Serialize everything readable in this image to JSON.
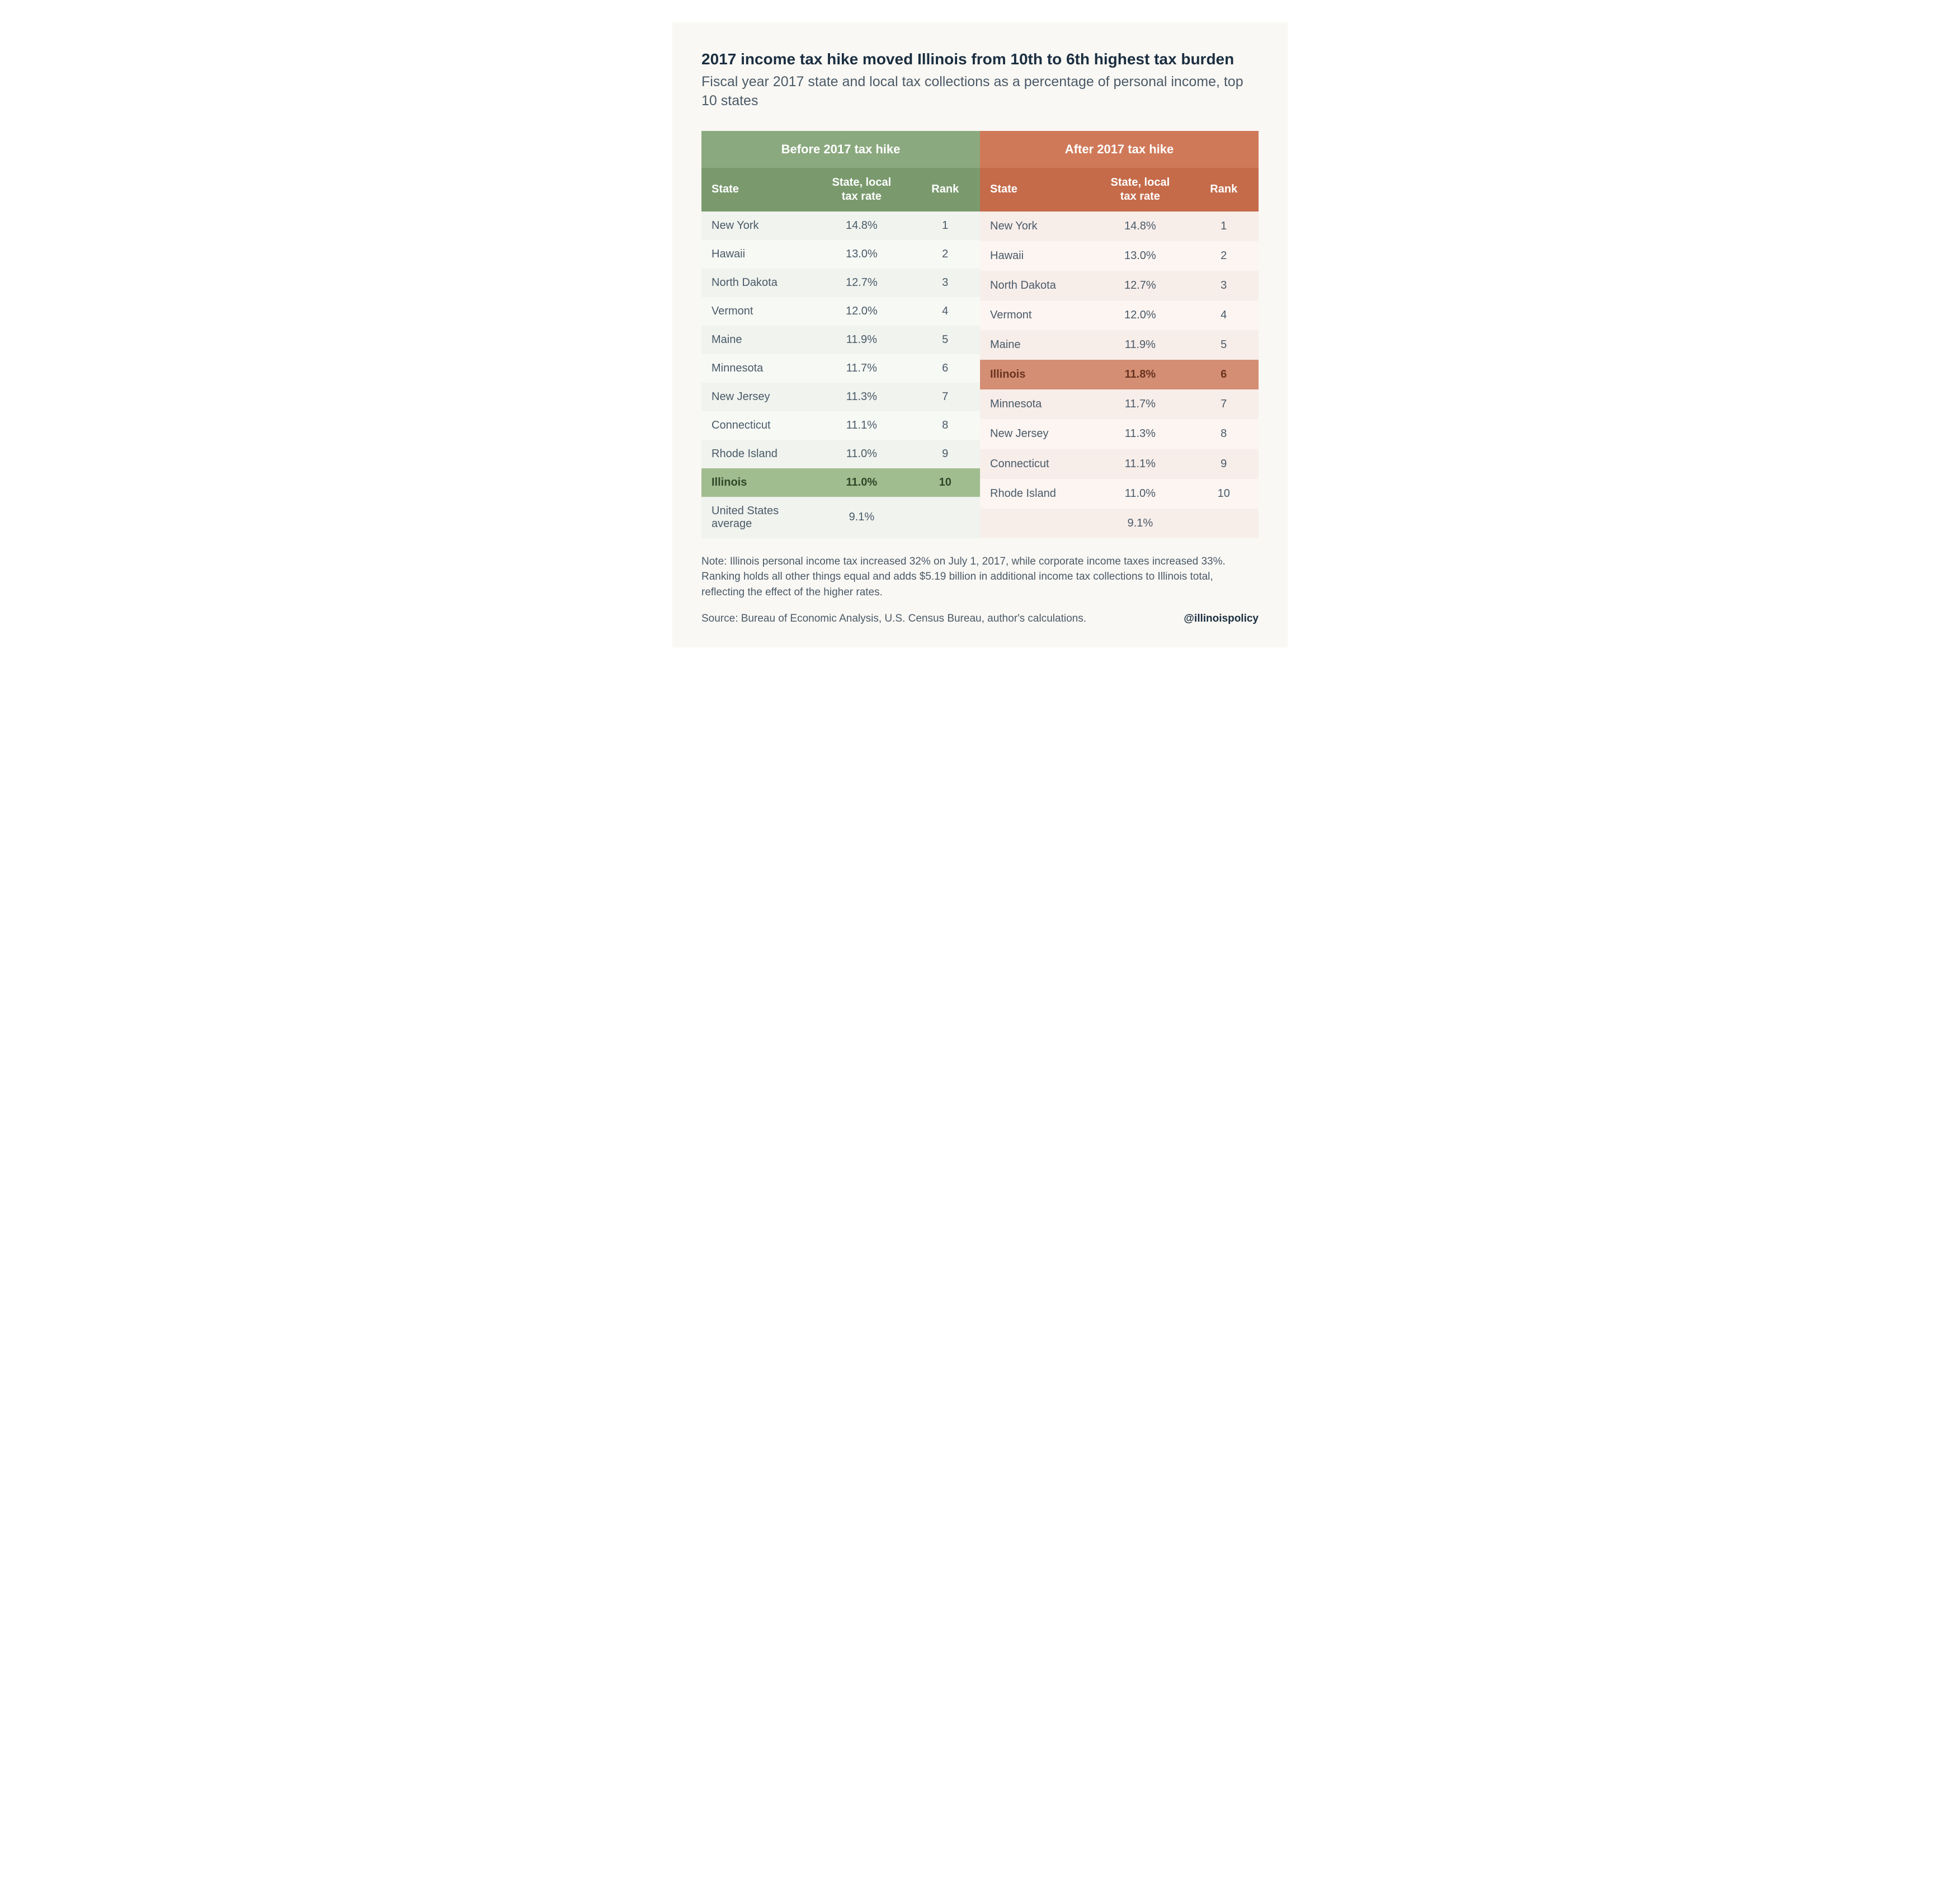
{
  "title": "2017 income tax hike moved Illinois from 10th to 6th highest tax burden",
  "subtitle": "Fiscal year 2017 state and local tax collections as a percentage of personal income, top 10 states",
  "colors": {
    "before_header": "#8ba97f",
    "before_subheader": "#7a9a6e",
    "before_highlight": "#a0bd90",
    "before_row_a": "#f0f3ee",
    "before_row_b": "#f7f9f5",
    "after_header": "#d07958",
    "after_subheader": "#c56b4a",
    "after_highlight": "#d38e74",
    "after_row_a": "#f7ede9",
    "after_row_b": "#fcf5f2",
    "background": "#faf8f4",
    "title_color": "#1a2e40",
    "body_color": "#4a5a68"
  },
  "typography": {
    "title_fontsize_pt": 21,
    "subtitle_fontsize_pt": 19,
    "header_fontsize_pt": 16,
    "cell_fontsize_pt": 15,
    "note_fontsize_pt": 14
  },
  "columns": {
    "state": "State",
    "rate": "State, local tax rate",
    "rank": "Rank"
  },
  "before": {
    "heading": "Before 2017 tax hike",
    "rows": [
      {
        "state": "New York",
        "rate": "14.8%",
        "rank": "1",
        "highlight": false
      },
      {
        "state": "Hawaii",
        "rate": "13.0%",
        "rank": "2",
        "highlight": false
      },
      {
        "state": "North Dakota",
        "rate": "12.7%",
        "rank": "3",
        "highlight": false
      },
      {
        "state": "Vermont",
        "rate": "12.0%",
        "rank": "4",
        "highlight": false
      },
      {
        "state": "Maine",
        "rate": "11.9%",
        "rank": "5",
        "highlight": false
      },
      {
        "state": "Minnesota",
        "rate": "11.7%",
        "rank": "6",
        "highlight": false
      },
      {
        "state": "New Jersey",
        "rate": "11.3%",
        "rank": "7",
        "highlight": false
      },
      {
        "state": "Connecticut",
        "rate": "11.1%",
        "rank": "8",
        "highlight": false
      },
      {
        "state": "Rhode Island",
        "rate": "11.0%",
        "rank": "9",
        "highlight": false
      },
      {
        "state": "Illinois",
        "rate": "11.0%",
        "rank": "10",
        "highlight": true
      },
      {
        "state": "United States average",
        "rate": "9.1%",
        "rank": "",
        "highlight": false
      }
    ]
  },
  "after": {
    "heading": "After 2017 tax hike",
    "rows": [
      {
        "state": "New York",
        "rate": "14.8%",
        "rank": "1",
        "highlight": false
      },
      {
        "state": "Hawaii",
        "rate": "13.0%",
        "rank": "2",
        "highlight": false
      },
      {
        "state": "North Dakota",
        "rate": "12.7%",
        "rank": "3",
        "highlight": false
      },
      {
        "state": "Vermont",
        "rate": "12.0%",
        "rank": "4",
        "highlight": false
      },
      {
        "state": "Maine",
        "rate": "11.9%",
        "rank": "5",
        "highlight": false
      },
      {
        "state": "Illinois",
        "rate": "11.8%",
        "rank": "6",
        "highlight": true
      },
      {
        "state": "Minnesota",
        "rate": "11.7%",
        "rank": "7",
        "highlight": false
      },
      {
        "state": "New Jersey",
        "rate": "11.3%",
        "rank": "8",
        "highlight": false
      },
      {
        "state": "Connecticut",
        "rate": "11.1%",
        "rank": "9",
        "highlight": false
      },
      {
        "state": "Rhode Island",
        "rate": "11.0%",
        "rank": "10",
        "highlight": false
      },
      {
        "state": "",
        "rate": "9.1%",
        "rank": "",
        "highlight": false
      }
    ]
  },
  "note": "Note: Illinois personal income tax increased 32% on July 1, 2017, while corporate income taxes increased 33%. Ranking holds all other things equal and adds $5.19 billion in additional income tax collections to Illinois total, reflecting the effect of the higher rates.",
  "source": "Source: Bureau of Economic Analysis, U.S. Census Bureau, author's calculations.",
  "handle": "@illinoispolicy"
}
